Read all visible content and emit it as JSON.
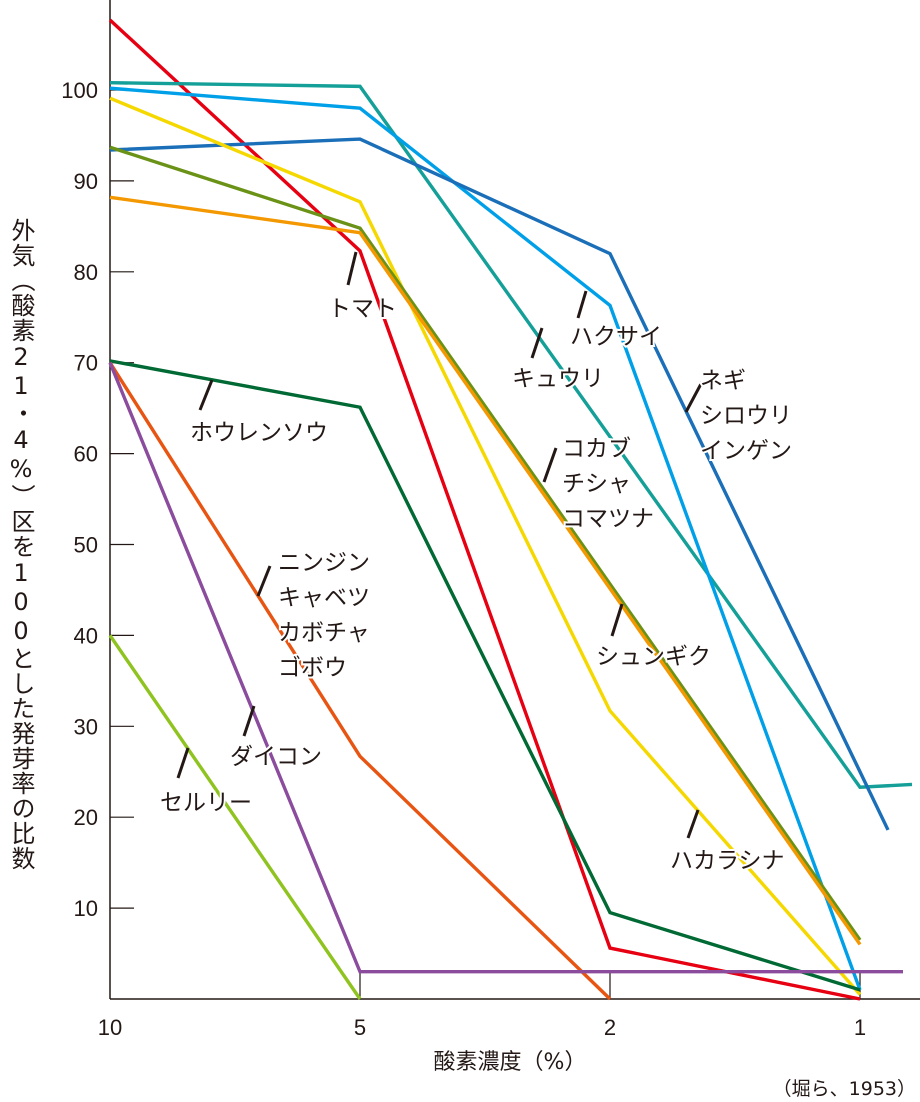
{
  "chart_data": {
    "type": "line",
    "title": "",
    "xlabel": "酸素濃度（%）",
    "ylabel": "外気（酸素21・4%）区を100とした発芽率の比数",
    "source": "（堀ら、1953）",
    "x": [
      10,
      5,
      2,
      1
    ],
    "x_tick_labels": [
      "10",
      "5",
      "2",
      "1"
    ],
    "y_ticks": [
      10,
      20,
      30,
      40,
      50,
      60,
      70,
      80,
      90,
      100
    ],
    "ylim": [
      0,
      110
    ],
    "grid": false,
    "series": [
      {
        "name": "トマト",
        "color": "#e60012",
        "values": [
          107.7,
          82.3,
          5.6,
          0
        ]
      },
      {
        "name": "キュウリ",
        "color": "#14a098",
        "values": [
          100.8,
          100.4,
          null,
          23.3
        ],
        "tail": 23.6
      },
      {
        "name": "ハクサイ",
        "color": "#00a0e9",
        "values": [
          100.2,
          98.0,
          76.3,
          1.0
        ]
      },
      {
        "name": "ネギ シロウリ インゲン",
        "color": "#1a6fb8",
        "values": [
          93.4,
          94.6,
          82.0,
          25.0
        ],
        "tail": 18.6
      },
      {
        "name": "ハカラシナ",
        "color": "#f5d800",
        "values": [
          99.1,
          87.7,
          31.7,
          0.5
        ]
      },
      {
        "name": "コカブ チシャ コマツナ",
        "color": "#6a9216",
        "values": [
          93.7,
          84.8,
          null,
          6.5
        ]
      },
      {
        "name": "シュンギク",
        "color": "#f39800",
        "values": [
          88.2,
          84.3,
          null,
          6.0
        ]
      },
      {
        "name": "ホウレンソウ",
        "color": "#006934",
        "values": [
          70.2,
          65.1,
          9.5,
          1.0
        ]
      },
      {
        "name": "ニンジン キャベツ カボチャ ゴボウ",
        "color": "#e85513",
        "values": [
          70.0,
          26.7,
          0,
          null
        ]
      },
      {
        "name": "ダイコン",
        "color": "#8b4c9e",
        "values": [
          70.0,
          3.0,
          3.0,
          3.0
        ],
        "tail": 3.0
      },
      {
        "name": "セルリー",
        "color": "#8fc31f",
        "values": [
          40.0,
          0,
          null,
          null
        ]
      }
    ],
    "annotations": [
      {
        "lines": [
          "トマト"
        ]
      },
      {
        "lines": [
          "キュウリ"
        ]
      },
      {
        "lines": [
          "ハクサイ"
        ]
      },
      {
        "lines": [
          "ネギ",
          "シロウリ",
          "インゲン"
        ]
      },
      {
        "lines": [
          "ハカラシナ"
        ]
      },
      {
        "lines": [
          "コカブ",
          "チシャ",
          "コマツナ"
        ]
      },
      {
        "lines": [
          "シュンギク"
        ]
      },
      {
        "lines": [
          "ホウレンソウ"
        ]
      },
      {
        "lines": [
          "ニンジン",
          "キャベツ",
          "カボチャ",
          "ゴボウ"
        ]
      },
      {
        "lines": [
          "ダイコン"
        ]
      },
      {
        "lines": [
          "セルリー"
        ]
      }
    ]
  }
}
